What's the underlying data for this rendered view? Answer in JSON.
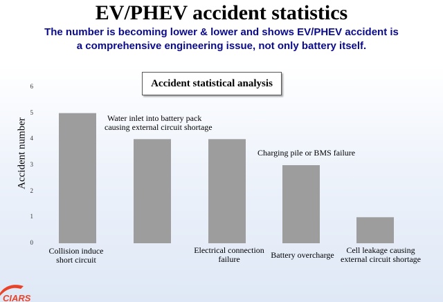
{
  "slide": {
    "title": "EV/PHEV accident statistics",
    "subtitle_line1": "The number is becoming lower & lower and shows EV/PHEV accident is",
    "subtitle_line2": "a comprehensive engineering issue, not only battery itself."
  },
  "chart_data": {
    "type": "bar",
    "title": "Accident statistical analysis",
    "ylabel": "Accident number",
    "xlabel": "",
    "ylim": [
      0,
      6
    ],
    "yticks": [
      "0",
      "1",
      "2",
      "3",
      "4",
      "5",
      "6"
    ],
    "categories": [
      "Collision induce short circuit",
      "Water inlet into battery pack causing external circuit shortage",
      "Electrical connection failure",
      "Battery overcharge",
      "Cell leakage causing external circuit shortage"
    ],
    "values": [
      5,
      4,
      4,
      3,
      1
    ],
    "labels": [
      [
        "Collision induce",
        "short circuit"
      ],
      [],
      [
        "Electrical connection",
        "failure"
      ],
      [
        "Battery overcharge"
      ],
      [
        "Cell leakage causing",
        "external circuit shortage"
      ]
    ],
    "annotations": [
      [
        "Water inlet into battery pack",
        "causing external circuit shortage"
      ],
      [
        "Charging pile or BMS failure"
      ]
    ],
    "bar_color": "#9d9d9d",
    "grid": false
  },
  "logo": {
    "text": "CIARS",
    "color": "#e8442a"
  }
}
